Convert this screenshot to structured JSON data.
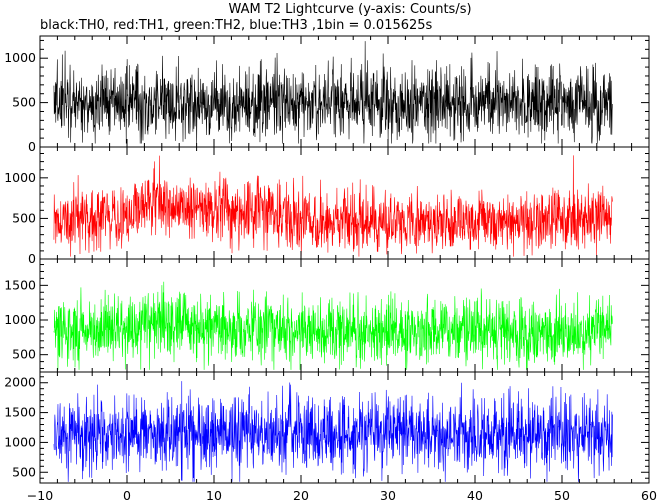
{
  "chart_data": {
    "type": "line",
    "title": "WAM T2 Lightcurve (y-axis: Counts/s)",
    "subtitle": "black:TH0, red:TH1, green:TH2, blue:TH3 ,1bin = 0.015625s",
    "xlabel": "",
    "ylabel": "",
    "xlim": [
      -10,
      60
    ],
    "x_ticks": [
      "−10",
      "0",
      "10",
      "20",
      "30",
      "40",
      "50",
      "60"
    ],
    "x_tick_values": [
      -10,
      0,
      10,
      20,
      30,
      40,
      50,
      60
    ],
    "data_x_range": [
      -8.4,
      55.8
    ],
    "grid": false,
    "legend": "none",
    "panels": [
      {
        "name": "TH0",
        "color": "#000000",
        "ylim": [
          0,
          1250
        ],
        "y_ticks": [
          "0",
          "500",
          "1000"
        ],
        "y_tick_values": [
          0,
          500,
          1000
        ],
        "y_minor_step": 100,
        "mean": 490,
        "spread": 200,
        "min_clip": 40,
        "max_clip": 1240,
        "trend": []
      },
      {
        "name": "TH1",
        "color": "#ff0000",
        "ylim": [
          0,
          1380
        ],
        "y_ticks": [
          "0",
          "500",
          "1000"
        ],
        "y_tick_values": [
          0,
          500,
          1000
        ],
        "y_minor_step": 100,
        "mean": 540,
        "spread": 190,
        "min_clip": 30,
        "max_clip": 1360,
        "trend": [
          [
            -8.4,
            470
          ],
          [
            0,
            520
          ],
          [
            3,
            720
          ],
          [
            8,
            620
          ],
          [
            15,
            600
          ],
          [
            22,
            480
          ],
          [
            35,
            470
          ],
          [
            45,
            470
          ],
          [
            55.8,
            520
          ]
        ]
      },
      {
        "name": "TH2",
        "color": "#00ff00",
        "ylim": [
          250,
          1880
        ],
        "y_ticks": [
          "500",
          "1000",
          "1500"
        ],
        "y_tick_values": [
          500,
          1000,
          1500
        ],
        "y_minor_step": 100,
        "mean": 850,
        "spread": 230,
        "min_clip": 280,
        "max_clip": 1860,
        "trend": [
          [
            -8.4,
            870
          ],
          [
            0,
            860
          ],
          [
            3,
            940
          ],
          [
            10,
            880
          ],
          [
            25,
            840
          ],
          [
            40,
            830
          ],
          [
            55.8,
            820
          ]
        ]
      },
      {
        "name": "TH3",
        "color": "#0000ff",
        "ylim": [
          320,
          2180
        ],
        "y_ticks": [
          "500",
          "1000",
          "1500",
          "2000"
        ],
        "y_tick_values": [
          500,
          1000,
          1500,
          2000
        ],
        "y_minor_step": 100,
        "mean": 1150,
        "spread": 290,
        "min_clip": 340,
        "max_clip": 2160,
        "trend": []
      }
    ]
  }
}
